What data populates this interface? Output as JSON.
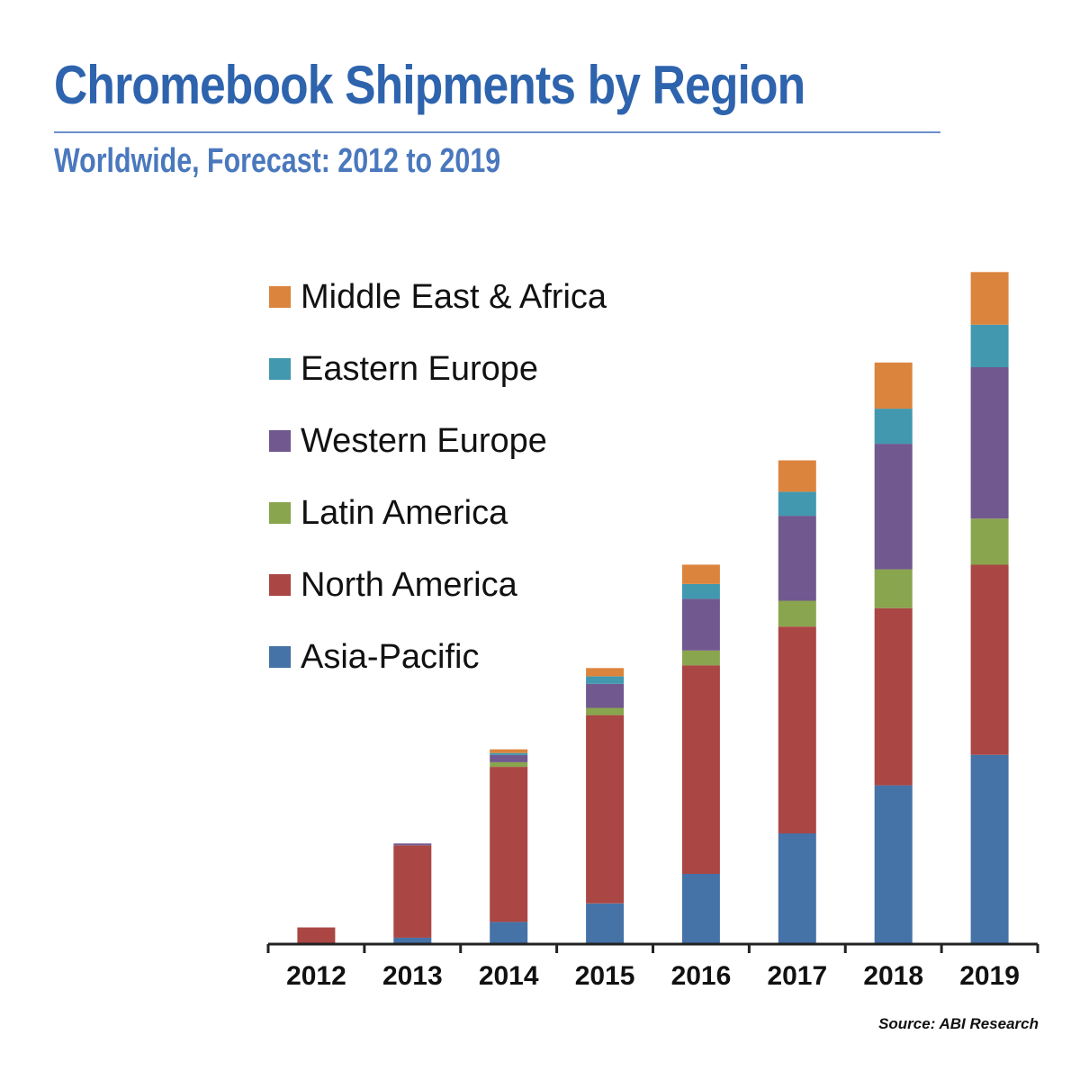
{
  "chart_data": {
    "type": "bar",
    "stacked": true,
    "title": "Chromebook Shipments by Region",
    "subtitle": "Worldwide, Forecast: 2012 to 2019",
    "categories": [
      "2012",
      "2013",
      "2014",
      "2015",
      "2016",
      "2017",
      "2018",
      "2019"
    ],
    "series": [
      {
        "name": "Asia-Pacific",
        "color": "#4572a7",
        "values": [
          0,
          0.7,
          2.4,
          4.4,
          7.6,
          12.0,
          17.2,
          20.5
        ]
      },
      {
        "name": "North America",
        "color": "#aa4643",
        "values": [
          1.8,
          10.0,
          16.8,
          20.4,
          22.6,
          22.4,
          19.2,
          20.6
        ]
      },
      {
        "name": "Latin America",
        "color": "#89a54e",
        "values": [
          0,
          0,
          0.5,
          0.8,
          1.6,
          2.8,
          4.2,
          5.0
        ]
      },
      {
        "name": "Western Europe",
        "color": "#71588f",
        "values": [
          0,
          0.2,
          0.8,
          2.6,
          5.6,
          9.2,
          13.6,
          16.4
        ]
      },
      {
        "name": "Eastern Europe",
        "color": "#4198af",
        "values": [
          0,
          0,
          0.2,
          0.8,
          1.6,
          2.6,
          3.8,
          4.6
        ]
      },
      {
        "name": "Middle East & Africa",
        "color": "#db843d",
        "values": [
          0,
          0,
          0.4,
          0.9,
          2.1,
          3.4,
          5.0,
          5.7
        ]
      }
    ],
    "xlabel": "",
    "ylabel": "",
    "ylim": [
      0,
      74
    ],
    "legend": "top-left, entries in reverse stacking order",
    "source": "Source: ABI Research"
  }
}
